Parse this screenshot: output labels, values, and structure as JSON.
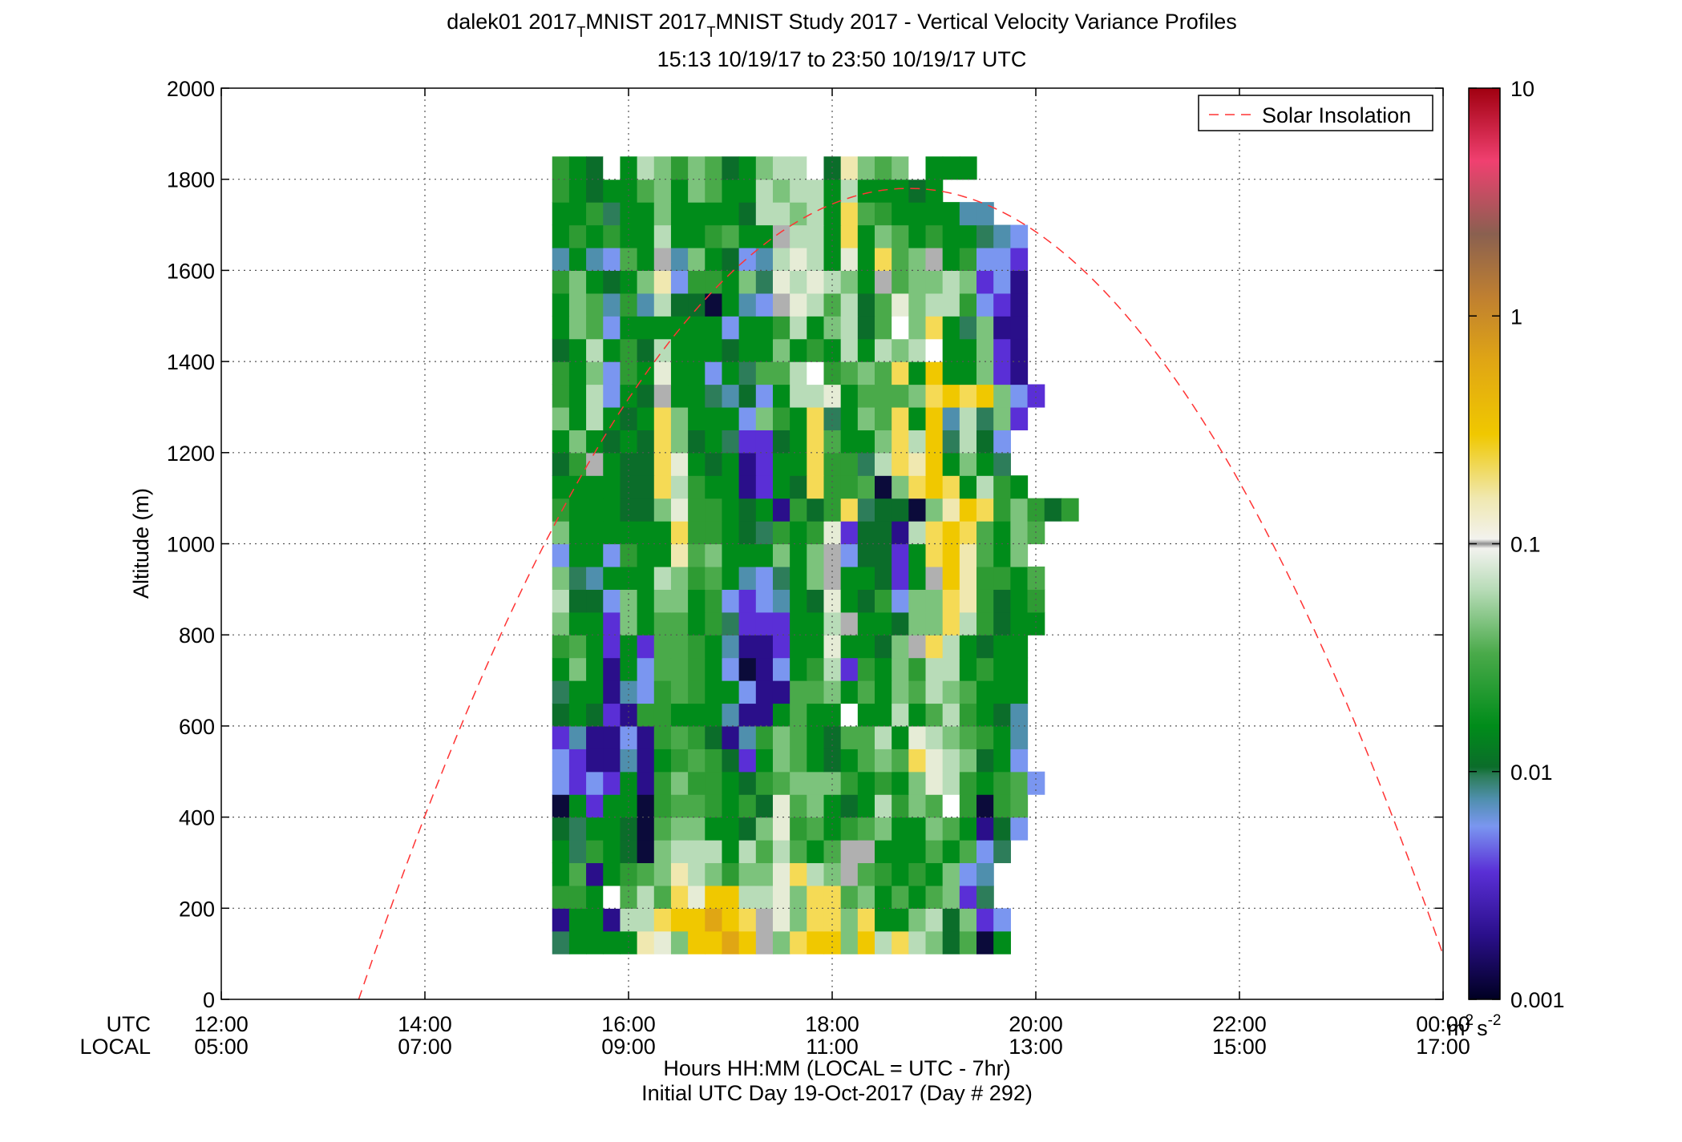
{
  "chart_data": {
    "type": "heatmap",
    "title_line1": {
      "main": "dalek01 2017",
      "sub1": "T",
      "mid": "MNIST 2017",
      "sub2": "T",
      "tail": "MNIST Study 2017 - Vertical Velocity Variance Profiles"
    },
    "title_line2": "15:13 10/19/17 to 23:50 10/19/17  UTC",
    "ylabel": "Altitude (m)",
    "xlabel": "Hours HH:MM  (LOCAL = UTC - 7hr)",
    "xlabel2": "Initial UTC Day 19-Oct-2017 (Day # 292)",
    "utc_label": "UTC",
    "local_label": "LOCAL",
    "x_range_hours": [
      12,
      24
    ],
    "y_range": [
      0,
      2000
    ],
    "x_ticks_utc": [
      "12:00",
      "14:00",
      "16:00",
      "18:00",
      "20:00",
      "22:00",
      "00:00"
    ],
    "x_ticks_local": [
      "05:00",
      "07:00",
      "09:00",
      "11:00",
      "13:00",
      "15:00",
      "17:00"
    ],
    "y_ticks": [
      "0",
      "200",
      "400",
      "600",
      "800",
      "1000",
      "1200",
      "1400",
      "1600",
      "1800",
      "2000"
    ],
    "y_tick_values": [
      0,
      200,
      400,
      600,
      800,
      1000,
      1200,
      1400,
      1600,
      1800,
      2000
    ],
    "grid": "dotted",
    "legend": {
      "position": "top-right",
      "entries": [
        {
          "label": "Solar Insolation",
          "style": "dashed",
          "color": "#ff3333"
        }
      ]
    },
    "colorbar": {
      "scale": "log",
      "range": [
        0.001,
        10
      ],
      "ticks": [
        "10",
        "1",
        "0.1",
        "0.01",
        "0.001"
      ],
      "tick_values": [
        10,
        1,
        0.1,
        0.01,
        0.001
      ],
      "unit_base": "m",
      "unit_exp1": "2",
      "unit_mid": "s",
      "unit_exp2": "-2"
    },
    "solar_insolation_curve": {
      "start_hour": 13.35,
      "end_hour": 24.0,
      "peak_hour": 18.75,
      "peak_altitude": 1780,
      "end_altitude": 120
    },
    "time_start_hour": 15.25,
    "time_step_hours": 0.1667,
    "altitude_start": 100,
    "altitude_step": 50,
    "palette": {
      "W": "#ffffff",
      "D": "#0b0b3a",
      "V": "#2a0f8a",
      "P": "#5a2fd6",
      "L": "#7a96f0",
      "T": "#4f8fad",
      "E": "#2d7d5a",
      "K": "#0b6d2a",
      "G": "#008c1a",
      "M": "#2e9b33",
      "N": "#4aaa4a",
      "S": "#7cc37c",
      "A": "#b8dcb8",
      "Y": "#e6ecd6",
      "C": "#f0e8b0",
      "U": "#f5da55",
      "F": "#f0c800",
      "O": "#e0a614",
      "R": "#b0b0b0"
    },
    "grid_rows": [
      "EGGGGCYSFFOFRSUFFSFAUASKNDG",
      "VGGVAAUFFOFURYSUUSUGGSAKSPL",
      "MMGWNANUYFFAAYSUUNSGNGNSPE",
      "GNVGMNSCASMSSYUASRNMGMGSLT",
      "GEMGKDSAAAGANANGNRRGGGNGNLE",
      "KEGGKDNSSGGKSYMNGMNSGGSNGVKL",
      "DGPGGDMNNMGMKYNSGKGAMSNWMDMN",
      "LPLPGVMSMMGKMNSSSMGMGSYAMGMNL",
      "LPVVTVGMNMKPGSNGKGNSNUYASKGL",
      "PTVVLVMNMKVTMSNGKNNAGYASNMGT",
      "KGKPVMMGGGTVVGNGGWGGAGNAMGKT",
      "EGGVTLMNMGGLVVNNSGNGSNASNGGG",
      "GSGVGLNNMGLDVLGMAPMGSMAAGMGG",
      "MNGPGPNNMGTVVPGGYGGKSRUAGKGG",
      "SGGPSGNNGMEPPPGGARGGKSSUAMKGG",
      "AKKLSGSSGMLPLTGKYGKMLSSUCMKGM",
      "SETGGGASMNGTLEGSRGGKPGRFCMMGN",
      "LGGLMGGCNSGGGSGSRLKKPGUFCNGS",
      "SGGGGGGUMMGKEMGMYPKKVAUFUNGSN",
      "MGGGKKSYMMGKGVMKMUEKKDSCFUMSMKM",
      "GGGGKKUAMGGVPGKUMMNDSUFUGAMG",
      "KMRGKKUYGKGVPGGUMMEAUCFGSGE",
      "GSGKGKUSKGEPPKGUNGGSUAFEAKL",
      "SGAGKGUSGGGLSMGUEGSNUGFTAESP",
      "MGALGKRGGETKLGAAYGNNNSUFUFSLP",
      "MGSLMGYGGLGENNAWMNSNUGFGGSPV",
      "KGAGMKAGGGKGGSGMGAGASAWGGSPV",
      "GSNLGGGGGGLGGMAGSAKNWSUGESVV",
      "GSNTMTAKKDGTLRYANAKNYSAAMLPV",
      "MSGKGSCLMMGSEYAYASGRNSSASPLV",
      "TGTLNGRTSGKLTAYAGYGUNSRGMLLP",
      "GMGMGGAGGMNGGRAAGUGSNGMGGETL",
      "GGMEGGSGGGGKAASAGUNMGGGGTT",
      "MGKGGNSGSNGGASAAGAGGGKG",
      "MGKWGASMSNKGSAAWKCSNSWGGG"
    ]
  }
}
